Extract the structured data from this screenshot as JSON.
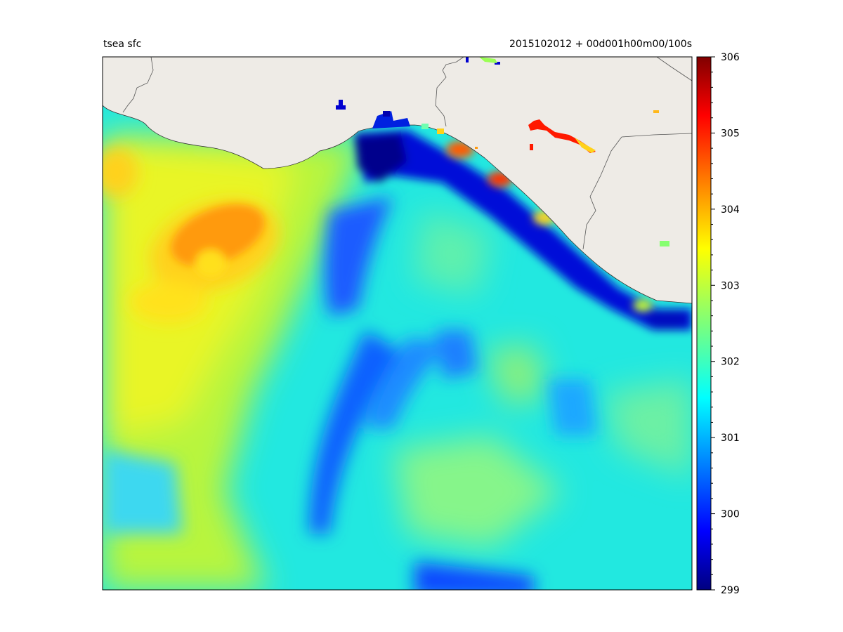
{
  "title_left": "tsea sfc",
  "title_right": "2015102012 + 00d001h00m00/100s",
  "colorbar": {
    "min": 299,
    "max": 306,
    "tick_labels": [
      "306",
      "305",
      "304",
      "303",
      "302",
      "301",
      "300",
      "299"
    ],
    "colormap": "jet"
  },
  "colors": {
    "land": "#eeebe6",
    "border": "#555555",
    "coast": "#333333",
    "sea_base": "#2ff0c8"
  }
}
